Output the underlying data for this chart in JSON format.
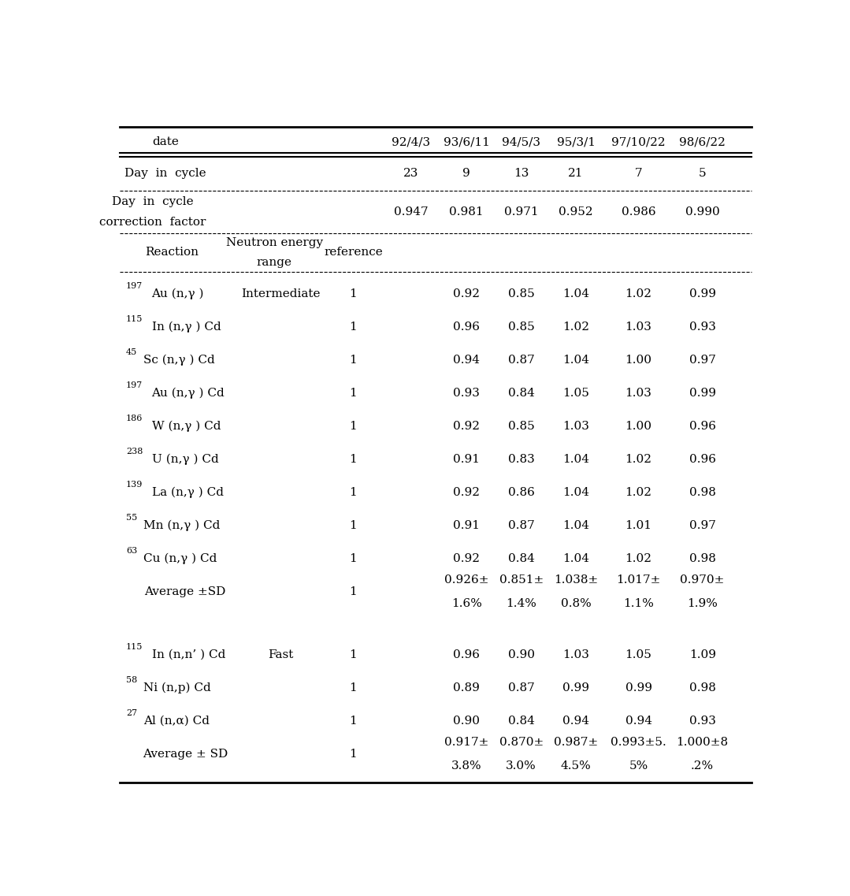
{
  "figsize": [
    10.79,
    11.37
  ],
  "dpi": 100,
  "bg_color": "#ffffff",
  "header_dates": [
    "92/4/3",
    "93/6/11",
    "94/5/3",
    "95/3/1",
    "97/10/22",
    "98/6/22"
  ],
  "day_cycle_values": [
    "23",
    "9",
    "13",
    "21",
    "7",
    "5"
  ],
  "correction_values": [
    "0.947",
    "0.981",
    "0.971",
    "0.952",
    "0.986",
    "0.990"
  ],
  "reaction_display": [
    [
      "197",
      "Au (n,γ )"
    ],
    [
      "115",
      "In (n,γ ) Cd"
    ],
    [
      "45",
      "Sc (n,γ ) Cd"
    ],
    [
      "197",
      "Au (n,γ ) Cd"
    ],
    [
      "186",
      "W (n,γ ) Cd"
    ],
    [
      "238",
      "U (n,γ ) Cd"
    ],
    [
      "139",
      "La (n,γ ) Cd"
    ],
    [
      "55",
      "Mn (n,γ ) Cd"
    ],
    [
      "63",
      "Cu (n,γ ) Cd"
    ]
  ],
  "data_vals": [
    [
      "0.92",
      "0.85",
      "1.04",
      "1.02",
      "0.99"
    ],
    [
      "0.96",
      "0.85",
      "1.02",
      "1.03",
      "0.93"
    ],
    [
      "0.94",
      "0.87",
      "1.04",
      "1.00",
      "0.97"
    ],
    [
      "0.93",
      "0.84",
      "1.05",
      "1.03",
      "0.99"
    ],
    [
      "0.92",
      "0.85",
      "1.03",
      "1.00",
      "0.96"
    ],
    [
      "0.91",
      "0.83",
      "1.04",
      "1.02",
      "0.96"
    ],
    [
      "0.92",
      "0.86",
      "1.04",
      "1.02",
      "0.98"
    ],
    [
      "0.91",
      "0.87",
      "1.04",
      "1.01",
      "0.97"
    ],
    [
      "0.92",
      "0.84",
      "1.04",
      "1.02",
      "0.98"
    ]
  ],
  "avg_vals_line1": [
    "0.926±",
    "0.851±",
    "1.038±",
    "1.017±",
    "0.970±"
  ],
  "avg_vals_line2": [
    "1.6%",
    "1.4%",
    "0.8%",
    "1.1%",
    "1.9%"
  ],
  "fast_display": [
    [
      "115",
      "In (n,n’ ) Cd"
    ],
    [
      "58",
      "Ni (n,p) Cd"
    ],
    [
      "27",
      "Al (n,α) Cd"
    ]
  ],
  "fast_vals": [
    [
      "0.96",
      "0.90",
      "1.03",
      "1.05",
      "1.09"
    ],
    [
      "0.89",
      "0.87",
      "0.99",
      "0.99",
      "0.98"
    ],
    [
      "0.90",
      "0.84",
      "0.94",
      "0.94",
      "0.93"
    ]
  ],
  "fast_avg_line1": [
    "0.917±",
    "0.870±",
    "0.987±",
    "0.993±5.",
    "1.000±8"
  ],
  "fast_avg_line2": [
    "3.8%",
    "3.0%",
    "4.5%",
    "5%",
    ".2%"
  ],
  "font_size": 11,
  "small_font": 8
}
